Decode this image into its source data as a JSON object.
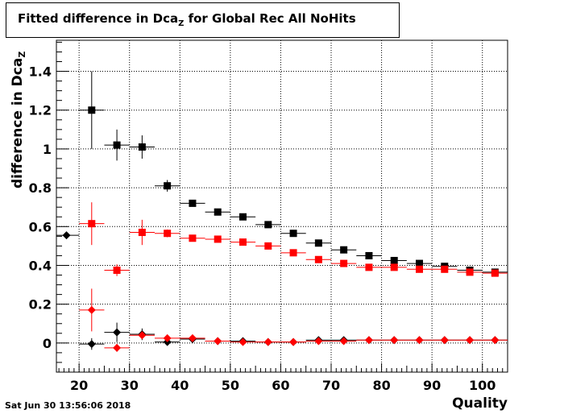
{
  "title": {
    "prefix": "Fitted difference in Dca",
    "subscript": "Z",
    "suffix": " for Global Rec All NoHits"
  },
  "timestamp": "Sat Jun 30 13:56:06 2018",
  "colors": {
    "series_black": "#000000",
    "series_red": "#ff0000",
    "grid": "#000000"
  },
  "chart_data": {
    "type": "scatter",
    "xlabel": "Quality",
    "ylabel_prefix": "difference in Dca",
    "ylabel_subscript": "Z",
    "xlim": [
      15.5,
      105
    ],
    "ylim": [
      -0.15,
      1.56
    ],
    "grid": true,
    "x_ticks": [
      20,
      30,
      40,
      50,
      60,
      70,
      80,
      90,
      100
    ],
    "y_ticks": [
      0,
      0.2,
      0.4,
      0.6,
      0.8,
      1,
      1.2,
      1.4
    ],
    "y_tick_labels": [
      "0",
      "0.2",
      "0.4",
      "0.6",
      "0.8",
      "1",
      "1.2",
      "1.4"
    ],
    "series": [
      {
        "marker": "square",
        "color": "#000000",
        "points": [
          {
            "x": 22.5,
            "y": 1.2,
            "err": 0.2
          },
          {
            "x": 27.5,
            "y": 1.02,
            "err": 0.08
          },
          {
            "x": 32.5,
            "y": 1.01,
            "err": 0.06
          },
          {
            "x": 37.5,
            "y": 0.81,
            "err": 0.03
          },
          {
            "x": 42.5,
            "y": 0.72,
            "err": 0.015
          },
          {
            "x": 47.5,
            "y": 0.675,
            "err": 0.01
          },
          {
            "x": 52.5,
            "y": 0.65,
            "err": 0.01
          },
          {
            "x": 57.5,
            "y": 0.61,
            "err": 0.01
          },
          {
            "x": 62.5,
            "y": 0.565,
            "err": 0.008
          },
          {
            "x": 67.5,
            "y": 0.515,
            "err": 0.008
          },
          {
            "x": 72.5,
            "y": 0.48,
            "err": 0.006
          },
          {
            "x": 77.5,
            "y": 0.45,
            "err": 0.005
          },
          {
            "x": 82.5,
            "y": 0.425,
            "err": 0.005
          },
          {
            "x": 87.5,
            "y": 0.41,
            "err": 0.004
          },
          {
            "x": 92.5,
            "y": 0.395,
            "err": 0.004
          },
          {
            "x": 97.5,
            "y": 0.375,
            "err": 0.004
          },
          {
            "x": 102.5,
            "y": 0.365,
            "err": 0.004
          }
        ]
      },
      {
        "marker": "square",
        "color": "#ff0000",
        "points": [
          {
            "x": 22.5,
            "y": 0.615,
            "err": 0.11
          },
          {
            "x": 27.5,
            "y": 0.375,
            "err": 0.03
          },
          {
            "x": 32.5,
            "y": 0.57,
            "err": 0.065
          },
          {
            "x": 37.5,
            "y": 0.565,
            "err": 0.02
          },
          {
            "x": 42.5,
            "y": 0.54,
            "err": 0.01
          },
          {
            "x": 47.5,
            "y": 0.535,
            "err": 0.01
          },
          {
            "x": 52.5,
            "y": 0.52,
            "err": 0.008
          },
          {
            "x": 57.5,
            "y": 0.5,
            "err": 0.008
          },
          {
            "x": 62.5,
            "y": 0.465,
            "err": 0.007
          },
          {
            "x": 67.5,
            "y": 0.43,
            "err": 0.006
          },
          {
            "x": 72.5,
            "y": 0.41,
            "err": 0.005
          },
          {
            "x": 77.5,
            "y": 0.39,
            "err": 0.005
          },
          {
            "x": 82.5,
            "y": 0.39,
            "err": 0.004
          },
          {
            "x": 87.5,
            "y": 0.38,
            "err": 0.004
          },
          {
            "x": 92.5,
            "y": 0.38,
            "err": 0.004
          },
          {
            "x": 97.5,
            "y": 0.365,
            "err": 0.004
          },
          {
            "x": 102.5,
            "y": 0.36,
            "err": 0.004
          }
        ]
      },
      {
        "marker": "diamond",
        "color": "#000000",
        "points": [
          {
            "x": 17.5,
            "y": 0.555,
            "err": 0.01
          },
          {
            "x": 22.5,
            "y": -0.005,
            "err": 0.03
          },
          {
            "x": 27.5,
            "y": 0.055,
            "err": 0.05
          },
          {
            "x": 32.5,
            "y": 0.045,
            "err": 0.03
          },
          {
            "x": 37.5,
            "y": 0.005,
            "err": 0.01
          },
          {
            "x": 42.5,
            "y": 0.02,
            "err": 0.01
          },
          {
            "x": 47.5,
            "y": 0.01,
            "err": 0.005
          },
          {
            "x": 52.5,
            "y": 0.01,
            "err": 0.005
          },
          {
            "x": 57.5,
            "y": 0.005,
            "err": 0.004
          },
          {
            "x": 62.5,
            "y": 0.005,
            "err": 0.004
          },
          {
            "x": 67.5,
            "y": 0.015,
            "err": 0.004
          },
          {
            "x": 72.5,
            "y": 0.015,
            "err": 0.003
          },
          {
            "x": 77.5,
            "y": 0.015,
            "err": 0.003
          },
          {
            "x": 82.5,
            "y": 0.015,
            "err": 0.003
          },
          {
            "x": 87.5,
            "y": 0.015,
            "err": 0.003
          },
          {
            "x": 92.5,
            "y": 0.015,
            "err": 0.003
          },
          {
            "x": 97.5,
            "y": 0.015,
            "err": 0.003
          },
          {
            "x": 102.5,
            "y": 0.015,
            "err": 0.003
          }
        ]
      },
      {
        "marker": "diamond",
        "color": "#ff0000",
        "points": [
          {
            "x": 22.5,
            "y": 0.17,
            "err": 0.11
          },
          {
            "x": 27.5,
            "y": -0.025,
            "err": 0.02
          },
          {
            "x": 32.5,
            "y": 0.04,
            "err": 0.02
          },
          {
            "x": 37.5,
            "y": 0.025,
            "err": 0.01
          },
          {
            "x": 42.5,
            "y": 0.025,
            "err": 0.01
          },
          {
            "x": 47.5,
            "y": 0.01,
            "err": 0.005
          },
          {
            "x": 52.5,
            "y": 0.005,
            "err": 0.005
          },
          {
            "x": 57.5,
            "y": 0.005,
            "err": 0.004
          },
          {
            "x": 62.5,
            "y": 0.005,
            "err": 0.004
          },
          {
            "x": 67.5,
            "y": 0.01,
            "err": 0.004
          },
          {
            "x": 72.5,
            "y": 0.01,
            "err": 0.003
          },
          {
            "x": 77.5,
            "y": 0.015,
            "err": 0.003
          },
          {
            "x": 82.5,
            "y": 0.015,
            "err": 0.003
          },
          {
            "x": 87.5,
            "y": 0.015,
            "err": 0.003
          },
          {
            "x": 92.5,
            "y": 0.015,
            "err": 0.003
          },
          {
            "x": 97.5,
            "y": 0.015,
            "err": 0.003
          },
          {
            "x": 102.5,
            "y": 0.015,
            "err": 0.003
          }
        ]
      }
    ]
  }
}
